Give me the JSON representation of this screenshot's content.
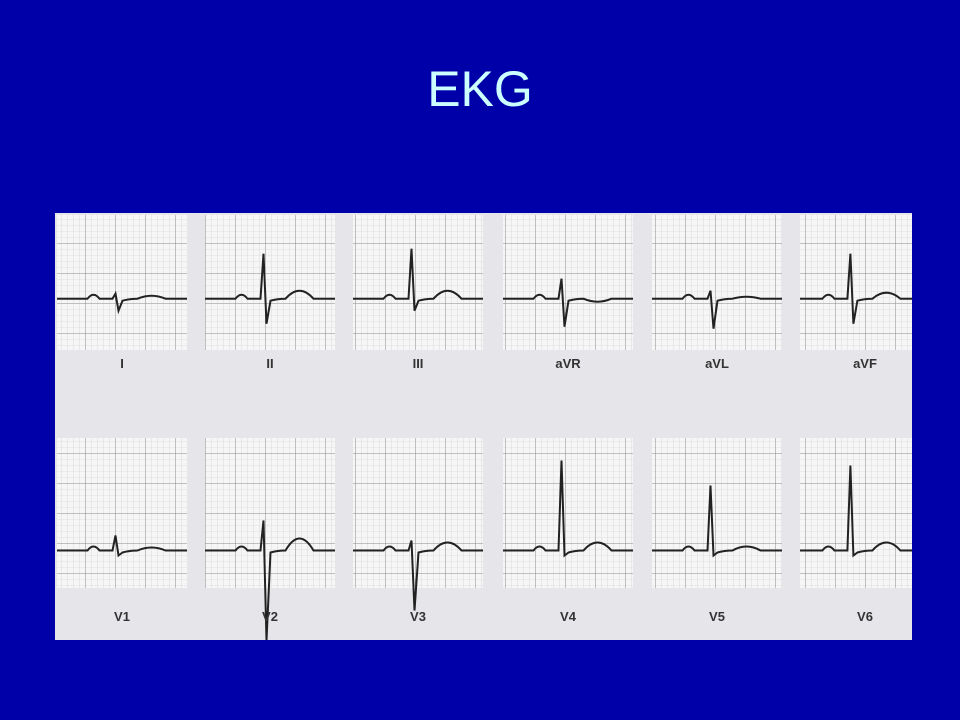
{
  "title": "EKG",
  "leads": {
    "top": [
      "I",
      "II",
      "III",
      "aVR",
      "aVL",
      "aVF"
    ],
    "bottom": [
      "V1",
      "V2",
      "V3",
      "V4",
      "V5",
      "V6"
    ]
  }
}
